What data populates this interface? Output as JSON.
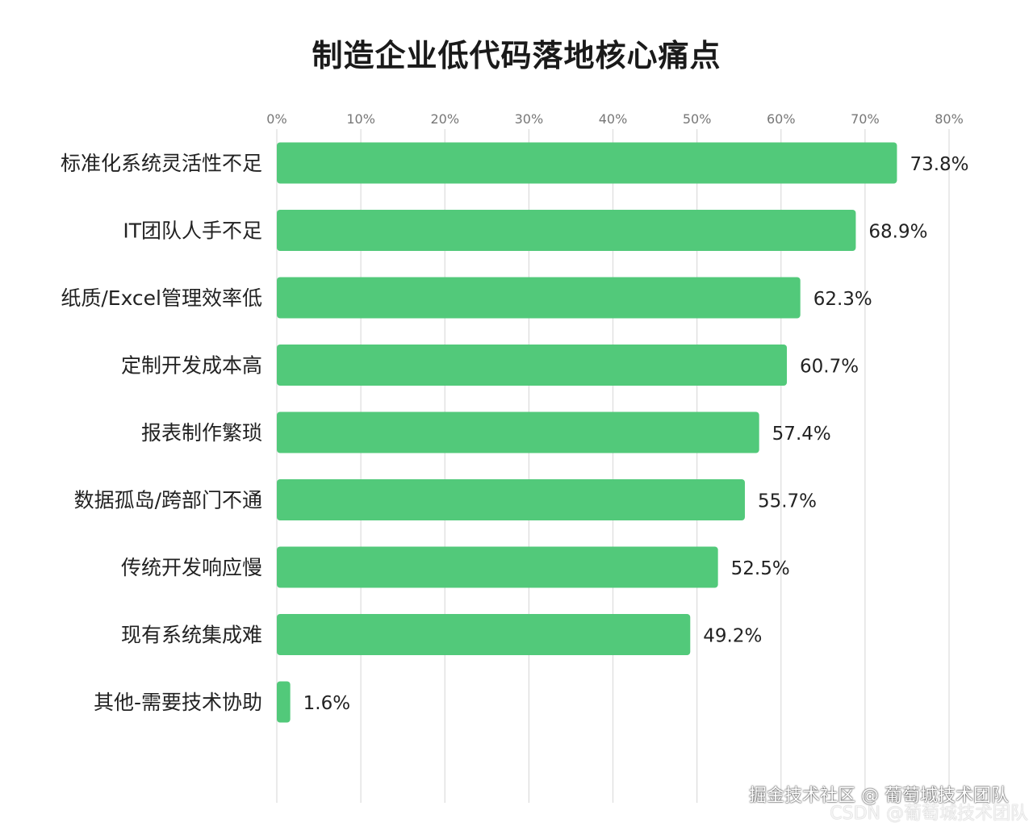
{
  "chart_data": {
    "type": "bar",
    "orientation": "horizontal",
    "title": "制造企业低代码落地核心痛点",
    "categories": [
      "标准化系统灵活性不足",
      "IT团队人手不足",
      "纸质/Excel管理效率低",
      "定制开发成本高",
      "报表制作繁琐",
      "数据孤岛/跨部门不通",
      "传统开发响应慢",
      "现有系统集成难",
      "其他-需要技术协助"
    ],
    "values": [
      73.8,
      68.9,
      62.3,
      60.7,
      57.4,
      55.7,
      52.5,
      49.2,
      1.6
    ],
    "value_labels": [
      "73.8%",
      "68.9%",
      "62.3%",
      "60.7%",
      "57.4%",
      "55.7%",
      "52.5%",
      "49.2%",
      "1.6%"
    ],
    "xlim": [
      0,
      80
    ],
    "x_ticks": [
      0,
      10,
      20,
      30,
      40,
      50,
      60,
      70,
      80
    ],
    "x_tick_labels": [
      "0%",
      "10%",
      "20%",
      "30%",
      "40%",
      "50%",
      "60%",
      "70%",
      "80%"
    ],
    "x_axis_position": "top",
    "grid": true,
    "bar_color": "#52c97a",
    "grid_color": "#dcdcdc"
  },
  "watermarks": {
    "main": "掘金技术社区 @ 葡萄城技术团队",
    "csdn": "CSDN @葡萄城技术团队"
  }
}
